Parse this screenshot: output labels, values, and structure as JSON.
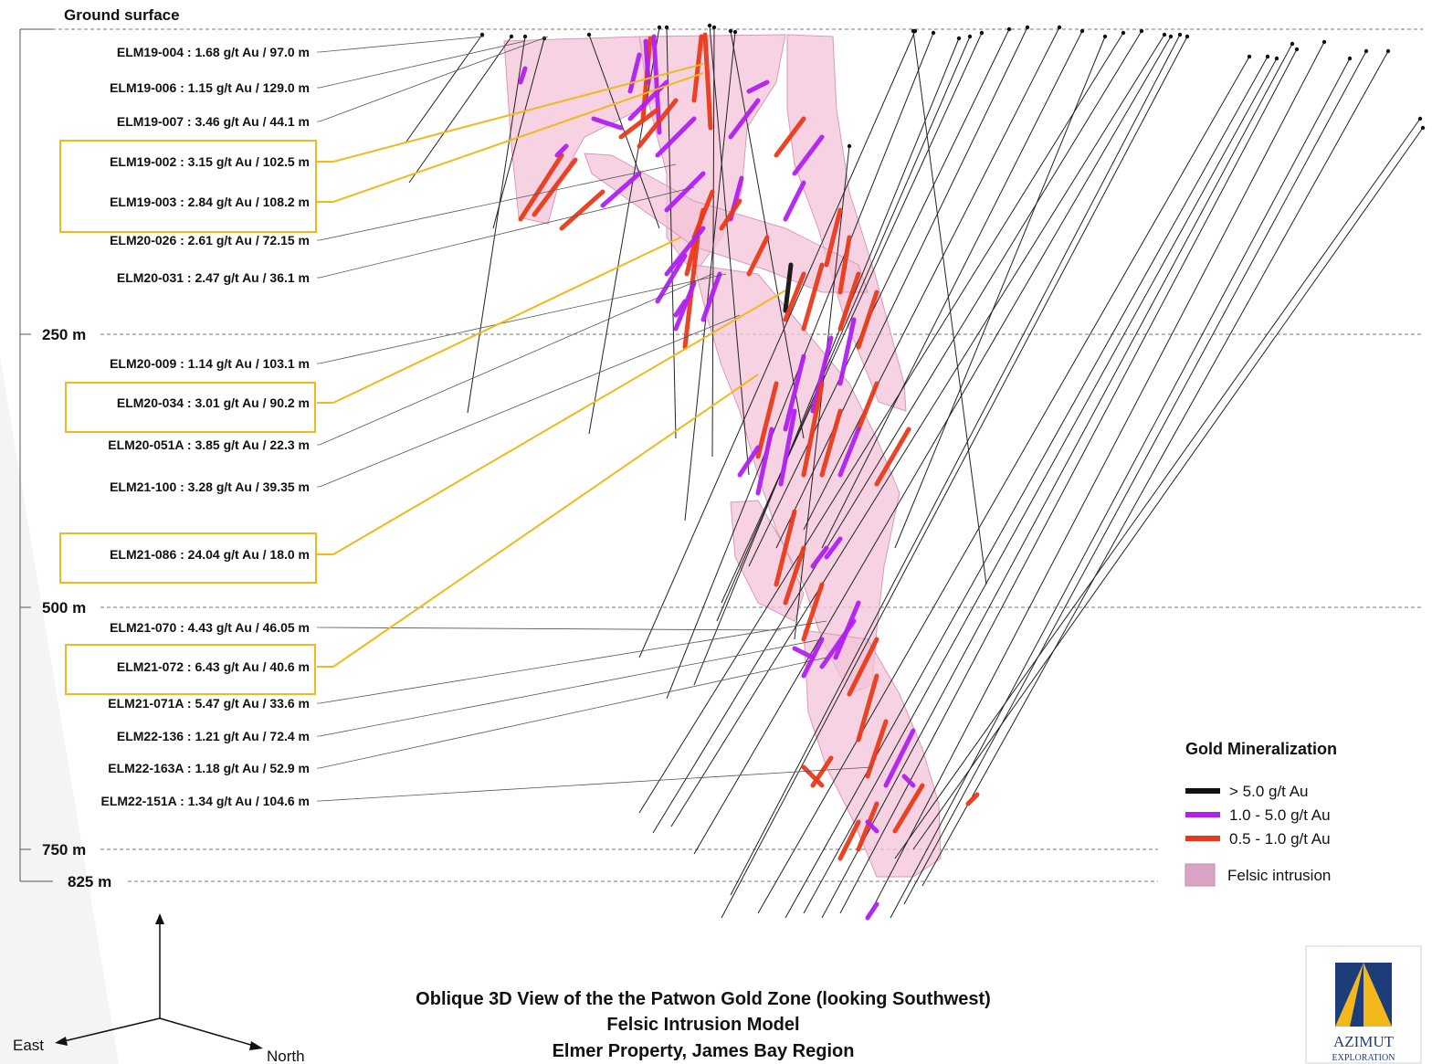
{
  "ground_surface_label": "Ground surface",
  "depth_markers": [
    {
      "label": "250 m",
      "depth_m": 250
    },
    {
      "label": "500 m",
      "depth_m": 500
    },
    {
      "label": "750 m",
      "depth_m": 750
    },
    {
      "label": "825 m",
      "depth_m": 825
    }
  ],
  "drill_intercepts": [
    {
      "label": "ELM19-004 : 1.68 g/t Au / 97.0 m",
      "highlighted": false
    },
    {
      "label": "ELM19-006 : 1.15 g/t Au / 129.0 m",
      "highlighted": false
    },
    {
      "label": "ELM19-007 : 3.46 g/t Au / 44.1 m",
      "highlighted": false
    },
    {
      "label": "ELM19-002 : 3.15 g/t Au / 102.5 m",
      "highlighted": true
    },
    {
      "label": "ELM19-003 : 2.84 g/t Au / 108.2 m",
      "highlighted": true
    },
    {
      "label": "ELM20-026 : 2.61 g/t Au / 72.15 m",
      "highlighted": false
    },
    {
      "label": "ELM20-031 : 2.47 g/t Au / 36.1 m",
      "highlighted": false
    },
    {
      "label": "ELM20-009 : 1.14 g/t Au / 103.1 m",
      "highlighted": false
    },
    {
      "label": "ELM20-034 : 3.01 g/t Au / 90.2 m",
      "highlighted": true
    },
    {
      "label": "ELM20-051A : 3.85 g/t Au / 22.3 m",
      "highlighted": false
    },
    {
      "label": "ELM21-100 : 3.28 g/t Au / 39.35 m",
      "highlighted": false
    },
    {
      "label": "ELM21-086 : 24.04 g/t Au / 18.0 m",
      "highlighted": true
    },
    {
      "label": "ELM21-070 : 4.43 g/t Au / 46.05 m",
      "highlighted": false
    },
    {
      "label": "ELM21-072 : 6.43 g/t Au / 40.6 m",
      "highlighted": true
    },
    {
      "label": "ELM21-071A : 5.47 g/t Au / 33.6 m",
      "highlighted": false
    },
    {
      "label": "ELM22-136 : 1.21 g/t Au / 72.4 m",
      "highlighted": false
    },
    {
      "label": "ELM22-163A : 1.18 g/t Au / 52.9 m",
      "highlighted": false
    },
    {
      "label": "ELM22-151A : 1.34 g/t Au / 104.6 m",
      "highlighted": false
    }
  ],
  "legend": {
    "title": "Gold Mineralization",
    "items": [
      {
        "label": "> 5.0 g/t Au",
        "color": "#111111",
        "kind": "line"
      },
      {
        "label": "1.0 - 5.0 g/t Au",
        "color": "#b020f0",
        "kind": "line"
      },
      {
        "label": "0.5 - 1.0 g/t Au",
        "color": "#e83a1a",
        "kind": "line"
      },
      {
        "label": "Felsic intrusion",
        "color": "#d9a3c4",
        "kind": "box"
      }
    ]
  },
  "title_lines": [
    "Oblique 3D View of the the Patwon Gold Zone (looking Southwest)",
    "Felsic Intrusion Model",
    "Elmer Property, James Bay Region"
  ],
  "orientation": {
    "east": "East",
    "north": "North"
  },
  "logo": {
    "name": "AZIMUT",
    "sub": "EXPLORATION",
    "colors": {
      "navy": "#1d3d7a",
      "gold": "#f2b81c"
    }
  },
  "colors": {
    "highlight_box": "#f2b81c",
    "drillhole": "#222222",
    "intrusion": "#f3c3d8",
    "very_high": "#111111",
    "high": "#b020f0",
    "medium": "#e83a1a"
  }
}
